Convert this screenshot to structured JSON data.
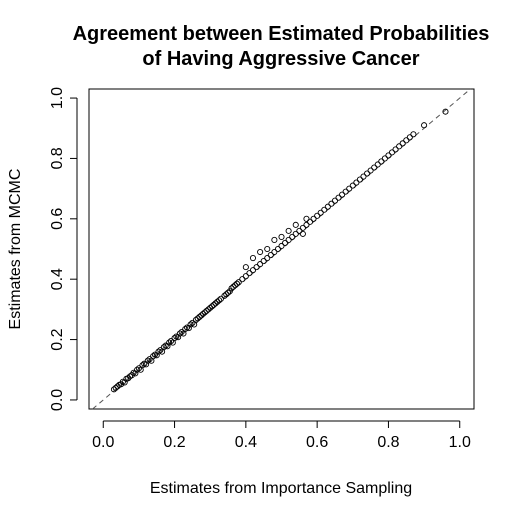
{
  "chart_data": {
    "type": "scatter",
    "title_lines": [
      "Agreement between Estimated Probabilities",
      "of Having Aggressive Cancer"
    ],
    "xlabel": "Estimates from Importance Sampling",
    "ylabel": "Estimates from MCMC",
    "xlim": [
      -0.04,
      1.04
    ],
    "ylim": [
      -0.03,
      1.03
    ],
    "x_ticks": [
      0.0,
      0.2,
      0.4,
      0.6,
      0.8,
      1.0
    ],
    "y_ticks": [
      0.0,
      0.2,
      0.4,
      0.6,
      0.8,
      1.0
    ],
    "x_tick_labels": [
      "0.0",
      "0.2",
      "0.4",
      "0.6",
      "0.8",
      "1.0"
    ],
    "y_tick_labels": [
      "0.0",
      "0.2",
      "0.4",
      "0.6",
      "0.8",
      "1.0"
    ],
    "reference_line": {
      "slope": 1,
      "intercept": 0,
      "style": "dashed"
    },
    "grid": false,
    "legend": "none",
    "point_style": "open-circle",
    "points": [
      [
        0.03,
        0.035
      ],
      [
        0.035,
        0.04
      ],
      [
        0.04,
        0.045
      ],
      [
        0.045,
        0.05
      ],
      [
        0.05,
        0.052
      ],
      [
        0.055,
        0.06
      ],
      [
        0.06,
        0.058
      ],
      [
        0.065,
        0.07
      ],
      [
        0.07,
        0.072
      ],
      [
        0.075,
        0.078
      ],
      [
        0.08,
        0.082
      ],
      [
        0.085,
        0.09
      ],
      [
        0.09,
        0.088
      ],
      [
        0.095,
        0.1
      ],
      [
        0.1,
        0.105
      ],
      [
        0.105,
        0.1
      ],
      [
        0.11,
        0.115
      ],
      [
        0.115,
        0.12
      ],
      [
        0.12,
        0.118
      ],
      [
        0.125,
        0.13
      ],
      [
        0.13,
        0.135
      ],
      [
        0.135,
        0.13
      ],
      [
        0.14,
        0.145
      ],
      [
        0.145,
        0.15
      ],
      [
        0.15,
        0.148
      ],
      [
        0.155,
        0.16
      ],
      [
        0.16,
        0.165
      ],
      [
        0.165,
        0.16
      ],
      [
        0.17,
        0.175
      ],
      [
        0.175,
        0.18
      ],
      [
        0.18,
        0.178
      ],
      [
        0.185,
        0.19
      ],
      [
        0.19,
        0.195
      ],
      [
        0.195,
        0.19
      ],
      [
        0.2,
        0.205
      ],
      [
        0.205,
        0.21
      ],
      [
        0.21,
        0.208
      ],
      [
        0.215,
        0.22
      ],
      [
        0.22,
        0.225
      ],
      [
        0.225,
        0.22
      ],
      [
        0.23,
        0.235
      ],
      [
        0.235,
        0.24
      ],
      [
        0.24,
        0.238
      ],
      [
        0.245,
        0.25
      ],
      [
        0.25,
        0.255
      ],
      [
        0.255,
        0.25
      ],
      [
        0.26,
        0.265
      ],
      [
        0.265,
        0.27
      ],
      [
        0.27,
        0.275
      ],
      [
        0.275,
        0.28
      ],
      [
        0.28,
        0.285
      ],
      [
        0.285,
        0.29
      ],
      [
        0.29,
        0.295
      ],
      [
        0.295,
        0.3
      ],
      [
        0.3,
        0.305
      ],
      [
        0.305,
        0.31
      ],
      [
        0.31,
        0.315
      ],
      [
        0.315,
        0.32
      ],
      [
        0.32,
        0.325
      ],
      [
        0.325,
        0.33
      ],
      [
        0.33,
        0.335
      ],
      [
        0.34,
        0.345
      ],
      [
        0.345,
        0.35
      ],
      [
        0.35,
        0.355
      ],
      [
        0.355,
        0.36
      ],
      [
        0.36,
        0.37
      ],
      [
        0.365,
        0.375
      ],
      [
        0.37,
        0.38
      ],
      [
        0.375,
        0.385
      ],
      [
        0.38,
        0.39
      ],
      [
        0.39,
        0.4
      ],
      [
        0.4,
        0.41
      ],
      [
        0.41,
        0.42
      ],
      [
        0.42,
        0.43
      ],
      [
        0.43,
        0.44
      ],
      [
        0.44,
        0.45
      ],
      [
        0.45,
        0.46
      ],
      [
        0.46,
        0.47
      ],
      [
        0.47,
        0.48
      ],
      [
        0.48,
        0.49
      ],
      [
        0.49,
        0.5
      ],
      [
        0.5,
        0.51
      ],
      [
        0.51,
        0.52
      ],
      [
        0.52,
        0.53
      ],
      [
        0.53,
        0.54
      ],
      [
        0.54,
        0.55
      ],
      [
        0.55,
        0.56
      ],
      [
        0.56,
        0.57
      ],
      [
        0.57,
        0.58
      ],
      [
        0.58,
        0.59
      ],
      [
        0.59,
        0.6
      ],
      [
        0.6,
        0.61
      ],
      [
        0.61,
        0.62
      ],
      [
        0.62,
        0.63
      ],
      [
        0.63,
        0.64
      ],
      [
        0.64,
        0.65
      ],
      [
        0.65,
        0.66
      ],
      [
        0.66,
        0.67
      ],
      [
        0.67,
        0.68
      ],
      [
        0.68,
        0.69
      ],
      [
        0.69,
        0.7
      ],
      [
        0.7,
        0.71
      ],
      [
        0.71,
        0.72
      ],
      [
        0.72,
        0.73
      ],
      [
        0.73,
        0.74
      ],
      [
        0.74,
        0.75
      ],
      [
        0.75,
        0.76
      ],
      [
        0.76,
        0.77
      ],
      [
        0.77,
        0.78
      ],
      [
        0.78,
        0.79
      ],
      [
        0.79,
        0.8
      ],
      [
        0.8,
        0.81
      ],
      [
        0.81,
        0.82
      ],
      [
        0.82,
        0.83
      ],
      [
        0.83,
        0.84
      ],
      [
        0.84,
        0.85
      ],
      [
        0.85,
        0.86
      ],
      [
        0.86,
        0.87
      ],
      [
        0.87,
        0.88
      ],
      [
        0.9,
        0.91
      ],
      [
        0.96,
        0.955
      ],
      [
        0.42,
        0.47
      ],
      [
        0.44,
        0.49
      ],
      [
        0.46,
        0.5
      ],
      [
        0.48,
        0.53
      ],
      [
        0.52,
        0.56
      ],
      [
        0.54,
        0.58
      ],
      [
        0.57,
        0.6
      ],
      [
        0.4,
        0.44
      ],
      [
        0.5,
        0.54
      ],
      [
        0.56,
        0.55
      ]
    ]
  }
}
